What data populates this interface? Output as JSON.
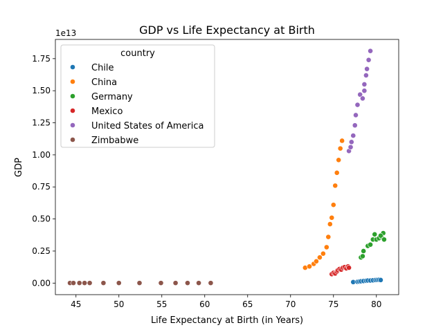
{
  "chart_data": {
    "type": "scatter",
    "title": "GDP vs Life Expectancy at Birth",
    "xlabel": "Life Expectancy at Birth (in Years)",
    "ylabel": "GDP",
    "y_offset_label": "1e13",
    "xlim": [
      42.6,
      82.6
    ],
    "ylim": [
      -0.09,
      1.9
    ],
    "x_ticks": [
      45,
      50,
      55,
      60,
      65,
      70,
      75,
      80
    ],
    "y_ticks": [
      0.0,
      0.25,
      0.5,
      0.75,
      1.0,
      1.25,
      1.5,
      1.75
    ],
    "y_tick_labels": [
      "0.00",
      "0.25",
      "0.50",
      "0.75",
      "1.00",
      "1.25",
      "1.50",
      "1.75"
    ],
    "grid": false,
    "legend": {
      "title": "country",
      "placement": "top-left"
    },
    "series": [
      {
        "name": "Chile",
        "color": "#1f77b4",
        "points": [
          [
            77.3,
            0.008
          ],
          [
            77.8,
            0.01
          ],
          [
            78.0,
            0.012
          ],
          [
            78.2,
            0.014
          ],
          [
            78.5,
            0.016
          ],
          [
            78.8,
            0.018
          ],
          [
            79.0,
            0.02
          ],
          [
            79.3,
            0.02
          ],
          [
            79.6,
            0.022
          ],
          [
            79.9,
            0.024
          ],
          [
            80.1,
            0.025
          ],
          [
            80.3,
            0.026
          ],
          [
            80.5,
            0.024
          ]
        ]
      },
      {
        "name": "China",
        "color": "#ff7f0e",
        "points": [
          [
            71.7,
            0.12
          ],
          [
            72.2,
            0.13
          ],
          [
            72.7,
            0.15
          ],
          [
            73.0,
            0.17
          ],
          [
            73.4,
            0.2
          ],
          [
            73.8,
            0.23
          ],
          [
            74.2,
            0.28
          ],
          [
            74.4,
            0.36
          ],
          [
            74.6,
            0.46
          ],
          [
            74.8,
            0.51
          ],
          [
            75.0,
            0.61
          ],
          [
            75.2,
            0.76
          ],
          [
            75.4,
            0.86
          ],
          [
            75.6,
            0.96
          ],
          [
            75.8,
            1.05
          ],
          [
            76.0,
            1.11
          ]
        ]
      },
      {
        "name": "Germany",
        "color": "#2ca02c",
        "points": [
          [
            78.2,
            0.2
          ],
          [
            78.4,
            0.21
          ],
          [
            78.5,
            0.25
          ],
          [
            79.0,
            0.29
          ],
          [
            79.3,
            0.3
          ],
          [
            79.6,
            0.34
          ],
          [
            79.8,
            0.38
          ],
          [
            80.0,
            0.34
          ],
          [
            80.3,
            0.35
          ],
          [
            80.6,
            0.36
          ],
          [
            80.8,
            0.39
          ],
          [
            80.9,
            0.34
          ],
          [
            80.5,
            0.37
          ]
        ]
      },
      {
        "name": "Mexico",
        "color": "#d62728",
        "points": [
          [
            74.8,
            0.07
          ],
          [
            75.0,
            0.08
          ],
          [
            75.2,
            0.075
          ],
          [
            75.4,
            0.09
          ],
          [
            75.5,
            0.1
          ],
          [
            75.7,
            0.11
          ],
          [
            75.9,
            0.105
          ],
          [
            76.1,
            0.12
          ],
          [
            76.3,
            0.125
          ],
          [
            76.5,
            0.115
          ],
          [
            76.7,
            0.13
          ],
          [
            76.8,
            0.12
          ]
        ]
      },
      {
        "name": "United States of America",
        "color": "#9467bd",
        "points": [
          [
            76.8,
            1.03
          ],
          [
            77.0,
            1.06
          ],
          [
            77.1,
            1.1
          ],
          [
            77.3,
            1.15
          ],
          [
            77.5,
            1.23
          ],
          [
            77.6,
            1.31
          ],
          [
            77.8,
            1.39
          ],
          [
            78.1,
            1.47
          ],
          [
            78.4,
            1.44
          ],
          [
            78.6,
            1.5
          ],
          [
            78.6,
            1.55
          ],
          [
            78.8,
            1.62
          ],
          [
            78.9,
            1.67
          ],
          [
            79.1,
            1.74
          ],
          [
            79.3,
            1.81
          ]
        ]
      },
      {
        "name": "Zimbabwe",
        "color": "#8c564b",
        "points": [
          [
            44.3,
            0.001
          ],
          [
            44.7,
            0.001
          ],
          [
            45.4,
            0.001
          ],
          [
            46.0,
            0.001
          ],
          [
            46.6,
            0.001
          ],
          [
            48.2,
            0.001
          ],
          [
            50.0,
            0.001
          ],
          [
            52.4,
            0.001
          ],
          [
            54.9,
            0.001
          ],
          [
            56.6,
            0.001
          ],
          [
            58.0,
            0.001
          ],
          [
            59.3,
            0.001
          ],
          [
            60.7,
            0.001
          ]
        ]
      }
    ]
  }
}
